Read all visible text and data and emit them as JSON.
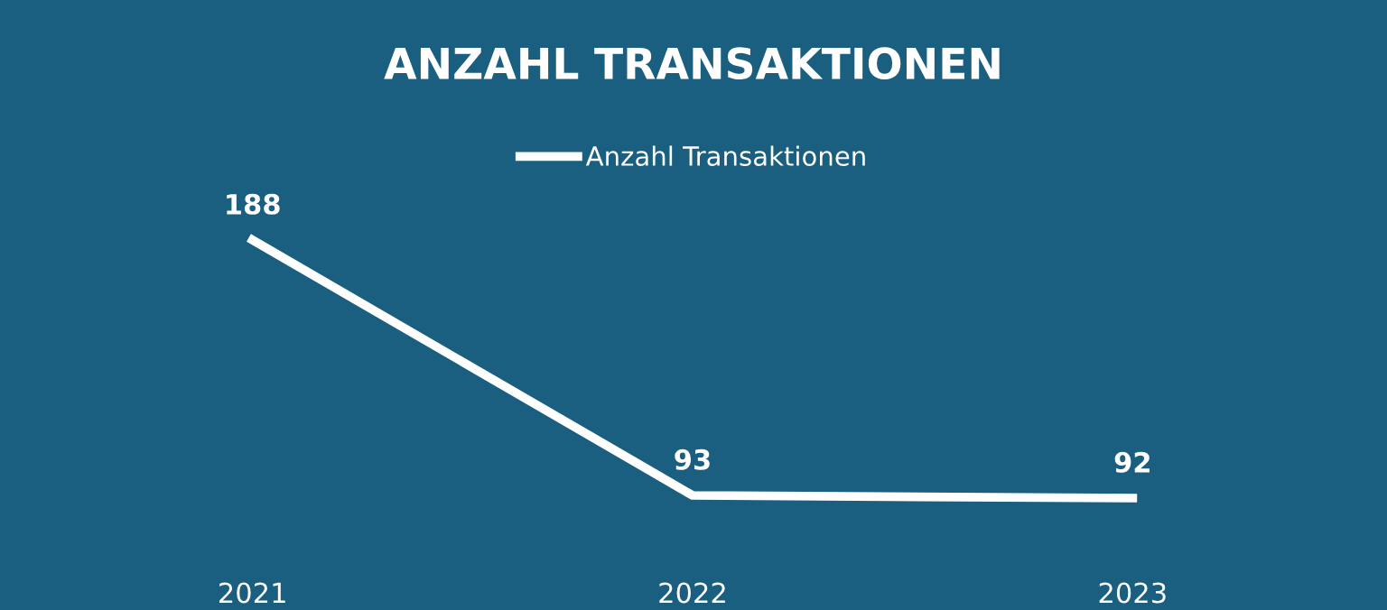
{
  "chart_data": {
    "type": "line",
    "title": "ANZAHL TRANSAKTIONEN",
    "categories": [
      "2021",
      "2022",
      "2023"
    ],
    "series": [
      {
        "name": "Anzahl Transaktionen",
        "color": "#ffffff",
        "values": [
          188,
          93,
          92
        ]
      }
    ],
    "data_labels": true,
    "legend": "top",
    "grid": false,
    "line_style": "solid",
    "tick_labels": "x"
  }
}
